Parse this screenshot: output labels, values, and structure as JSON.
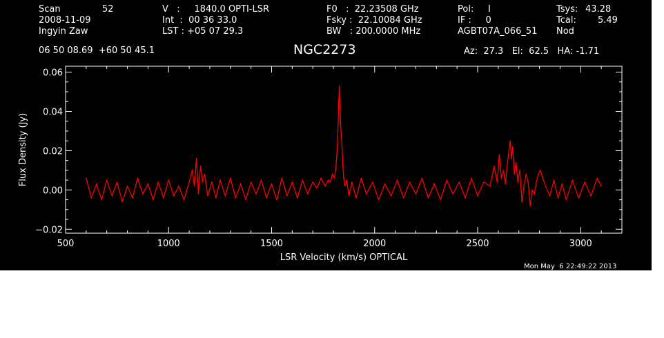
{
  "header": {
    "col1": {
      "scan_label": "Scan",
      "scan_value": "52",
      "date": "2008-11-09",
      "observer": "Ingyin Zaw",
      "position": "06 50 08.69  +60 50 45.1"
    },
    "col2": {
      "velocity": "V   :     1840.0 OPTI-LSR",
      "int": "Int  :  00 36 33.0",
      "lst": "LST : +05 07 29.3"
    },
    "col3": {
      "f0": "F0   :  22.23508 GHz",
      "fsky": "Fsky :  22.10084 GHz",
      "bw": "BW   : 200.0000 MHz"
    },
    "col4": {
      "pol": "Pol:     I",
      "if": "IF :     0",
      "project": "AGBT07A_066_51"
    },
    "col5": {
      "tsys_label": "Tsys:",
      "tsys_value": "43.28",
      "tcal_label": "Tcal:",
      "tcal_value": "5.49",
      "mode": "Nod"
    },
    "source": "NGC2273",
    "pointing": "Az:  27.3   El:  62.5   HA: -1.71"
  },
  "timestamp": "Mon May  6 22:49:22 2013",
  "colors": {
    "background": "#000000",
    "axes": "#ffffff",
    "spectrum": "#ff0000"
  },
  "chart_data": {
    "type": "line",
    "title": "NGC2273",
    "xlabel": "LSR Velocity (km/s) OPTICAL",
    "ylabel": "Flux Density (Jy)",
    "xlim": [
      500,
      3200
    ],
    "ylim": [
      -0.022,
      0.063
    ],
    "xticks": [
      500,
      1000,
      1500,
      2000,
      2500,
      3000
    ],
    "yticks": [
      -0.02,
      0.0,
      0.02,
      0.04,
      0.06
    ],
    "ytick_labels": [
      "−0.02",
      "0.00",
      "0.02",
      "0.04",
      "0.06"
    ],
    "grid": false,
    "series": [
      {
        "x": [
          600,
          625,
          650,
          675,
          700,
          725,
          750,
          775,
          800,
          825,
          850,
          875,
          900,
          925,
          950,
          975,
          1000,
          1025,
          1050,
          1075,
          1100,
          1115,
          1125,
          1135,
          1145,
          1155,
          1165,
          1175,
          1190,
          1210,
          1230,
          1250,
          1275,
          1300,
          1325,
          1350,
          1375,
          1400,
          1425,
          1450,
          1475,
          1500,
          1525,
          1550,
          1575,
          1600,
          1625,
          1650,
          1675,
          1700,
          1720,
          1740,
          1760,
          1775,
          1785,
          1795,
          1805,
          1812,
          1818,
          1822,
          1826,
          1829,
          1832,
          1835,
          1838,
          1842,
          1846,
          1850,
          1856,
          1864,
          1875,
          1890,
          1910,
          1935,
          1960,
          1990,
          2020,
          2050,
          2080,
          2110,
          2140,
          2170,
          2200,
          2230,
          2260,
          2290,
          2320,
          2350,
          2380,
          2410,
          2440,
          2470,
          2500,
          2530,
          2560,
          2580,
          2595,
          2605,
          2615,
          2625,
          2635,
          2645,
          2652,
          2658,
          2664,
          2670,
          2678,
          2686,
          2695,
          2705,
          2715,
          2725,
          2735,
          2745,
          2755,
          2765,
          2775,
          2785,
          2795,
          2805,
          2815,
          2830,
          2850,
          2870,
          2890,
          2910,
          2930,
          2960,
          2990,
          3020,
          3050,
          3080,
          3100
        ],
        "y": [
          0.006,
          -0.004,
          0.003,
          -0.005,
          0.005,
          -0.003,
          0.004,
          -0.006,
          0.002,
          -0.004,
          0.006,
          -0.002,
          0.003,
          -0.005,
          0.004,
          -0.004,
          0.005,
          -0.003,
          0.002,
          -0.005,
          0.004,
          0.01,
          0.002,
          0.016,
          -0.002,
          0.012,
          0.004,
          0.008,
          -0.003,
          0.004,
          -0.004,
          0.005,
          -0.003,
          0.006,
          -0.004,
          0.003,
          -0.005,
          0.004,
          -0.002,
          0.005,
          -0.004,
          0.003,
          -0.005,
          0.006,
          -0.003,
          0.004,
          -0.004,
          0.005,
          -0.002,
          0.004,
          0.001,
          0.006,
          0.002,
          0.005,
          0.004,
          0.008,
          0.006,
          0.012,
          0.02,
          0.03,
          0.045,
          0.053,
          0.042,
          0.034,
          0.028,
          0.022,
          0.012,
          0.006,
          0.002,
          0.005,
          -0.003,
          0.004,
          -0.004,
          0.006,
          -0.002,
          0.004,
          -0.005,
          0.003,
          -0.003,
          0.005,
          -0.004,
          0.004,
          -0.002,
          0.006,
          -0.004,
          0.003,
          -0.005,
          0.005,
          -0.002,
          0.004,
          -0.004,
          0.006,
          -0.003,
          0.004,
          0.002,
          0.012,
          0.004,
          0.018,
          0.006,
          0.01,
          0.003,
          0.014,
          0.02,
          0.025,
          0.016,
          0.022,
          0.008,
          0.014,
          0.004,
          0.01,
          -0.006,
          0.002,
          0.008,
          0.004,
          -0.008,
          0.0,
          -0.002,
          0.004,
          0.008,
          0.01,
          0.006,
          0.002,
          -0.003,
          0.005,
          -0.004,
          0.003,
          -0.005,
          0.005,
          -0.004,
          0.004,
          -0.003,
          0.006,
          0.002
        ]
      }
    ]
  }
}
